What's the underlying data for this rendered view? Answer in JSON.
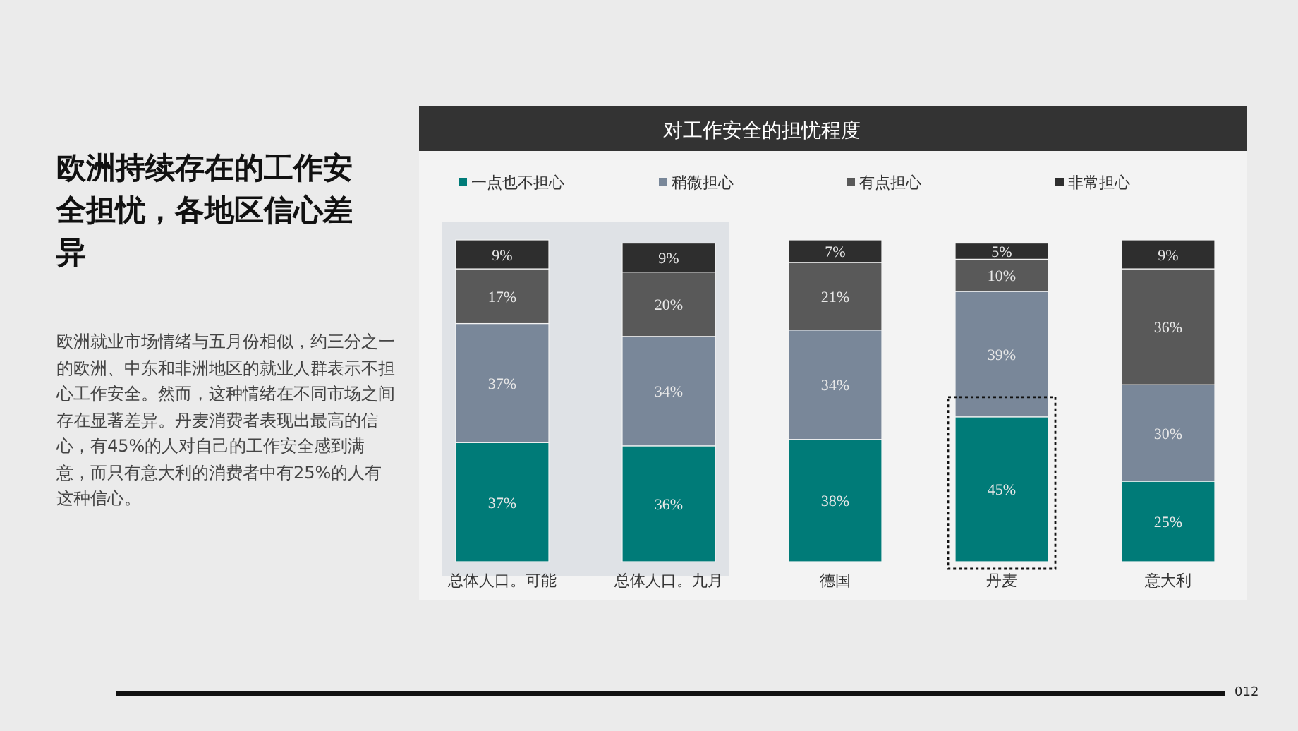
{
  "chart_data": {
    "type": "bar",
    "stacked": true,
    "title": "对工作安全的担忧程度",
    "categories": [
      "总体人口。可能",
      "总体人口。九月",
      "德国",
      "丹麦",
      "意大利"
    ],
    "series": [
      {
        "name": "一点也不担心",
        "color": "#007b78",
        "values": [
          37,
          36,
          38,
          45,
          25
        ],
        "value_labels": [
          "37%",
          "36%",
          "38%",
          "45%",
          "25%"
        ]
      },
      {
        "name": "稍微担心",
        "color": "#798799",
        "values": [
          37,
          34,
          34,
          39,
          30
        ],
        "value_labels": [
          "37%",
          "34%",
          "34%",
          "39%",
          "30%"
        ]
      },
      {
        "name": "有点担心",
        "color": "#595959",
        "values": [
          17,
          20,
          21,
          10,
          36
        ],
        "value_labels": [
          "17%",
          "20%",
          "21%",
          "10%",
          "36%"
        ]
      },
      {
        "name": "非常担心",
        "color": "#2e2e2e",
        "values": [
          9,
          9,
          7,
          5,
          9
        ],
        "value_labels": [
          "9%",
          "9%",
          "7%",
          "5%",
          "9%"
        ]
      }
    ],
    "legend": "top",
    "grid": false,
    "bands": [
      {
        "axis": "x",
        "from": "总体人口。可能",
        "to": "总体人口。九月",
        "color": "#dfe2e6"
      }
    ],
    "annotations": [
      "欧洲持续存在的工作安全担忧，各地区信心差异",
      "欧洲就业市场情绪与五月份相似，约三分之一的欧洲、中东和非洲地区的就业人群表示不担心工作安全。然而，这种情绪在不同市场之间存在显著差异。丹麦消费者表现出最高的信心，有45%的人对自己的工作安全感到满意，而只有意大利的消费者中有25%的人有这种信心。",
      "012"
    ]
  }
}
